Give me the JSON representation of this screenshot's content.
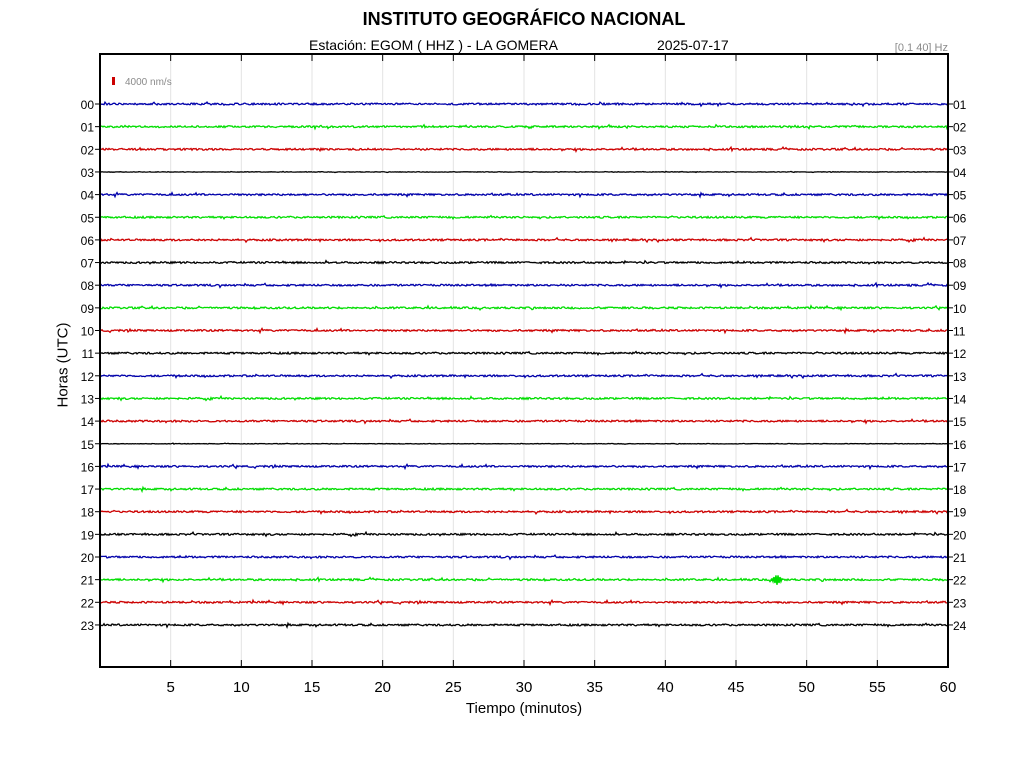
{
  "header": {
    "title": "INSTITUTO GEOGRÁFICO NACIONAL",
    "station": "Estación:  EGOM ( HHZ ) - LA GOMERA",
    "date": "2025-07-17",
    "filter": "[0.1 40] Hz"
  },
  "chart_data": {
    "type": "line",
    "xlabel": "Tiempo (minutos)",
    "ylabel": "Horas (UTC)",
    "xlim": [
      0,
      60
    ],
    "x_ticks": [
      5,
      10,
      15,
      20,
      25,
      30,
      35,
      40,
      45,
      50,
      55,
      60
    ],
    "scale_label": "4000 nm/s",
    "colors": [
      "#0000aa",
      "#00dd00",
      "#cc0000",
      "#000000"
    ],
    "scale_color": "#cc0000",
    "left_ticks": [
      "00",
      "01",
      "02",
      "03",
      "04",
      "05",
      "06",
      "07",
      "08",
      "09",
      "10",
      "11",
      "12",
      "13",
      "14",
      "15",
      "16",
      "17",
      "18",
      "19",
      "20",
      "21",
      "22",
      "23"
    ],
    "right_ticks": [
      "01",
      "02",
      "03",
      "04",
      "05",
      "06",
      "07",
      "08",
      "09",
      "10",
      "11",
      "12",
      "13",
      "14",
      "15",
      "16",
      "17",
      "18",
      "19",
      "20",
      "21",
      "22",
      "23",
      "24"
    ],
    "event": {
      "hour": 21,
      "minute": 47.9
    }
  }
}
